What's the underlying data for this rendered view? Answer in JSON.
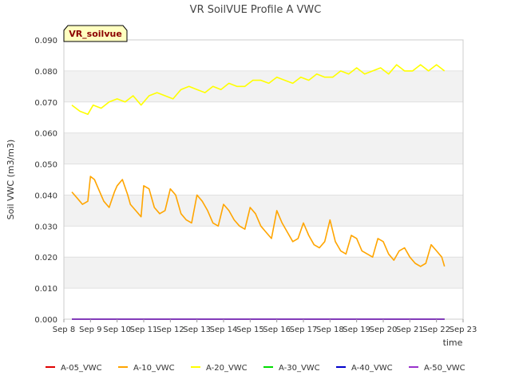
{
  "chart_data": {
    "type": "line",
    "title": "VR SoilVUE Profile A VWC",
    "badge": "VR_soilvue",
    "xlabel": "time",
    "ylabel": "Soil VWC (m3/m3)",
    "ylim": [
      0.0,
      0.09
    ],
    "xlim": [
      0,
      15
    ],
    "yticks": [
      "0.000",
      "0.010",
      "0.020",
      "0.030",
      "0.040",
      "0.050",
      "0.060",
      "0.070",
      "0.080",
      "0.090"
    ],
    "ytick_values": [
      0.0,
      0.01,
      0.02,
      0.03,
      0.04,
      0.05,
      0.06,
      0.07,
      0.08,
      0.09
    ],
    "xticks": [
      "Sep 8",
      "Sep 9",
      "Sep 10",
      "Sep 11",
      "Sep 12",
      "Sep 13",
      "Sep 14",
      "Sep 15",
      "Sep 16",
      "Sep 17",
      "Sep 18",
      "Sep 19",
      "Sep 20",
      "Sep 21",
      "Sep 22",
      "Sep 23"
    ],
    "xtick_values": [
      0,
      1,
      2,
      3,
      4,
      5,
      6,
      7,
      8,
      9,
      10,
      11,
      12,
      13,
      14,
      15
    ],
    "grid": true,
    "legend_position": "bottom",
    "series": [
      {
        "name": "A-05_VWC",
        "color": "#e00000",
        "x": [
          0.3,
          14.3
        ],
        "values": [
          0.0,
          0.0
        ]
      },
      {
        "name": "A-10_VWC",
        "color": "#ffa500",
        "x": [
          0.3,
          0.5,
          0.7,
          0.9,
          1.0,
          1.15,
          1.3,
          1.5,
          1.7,
          1.9,
          2.0,
          2.2,
          2.4,
          2.5,
          2.7,
          2.9,
          3.0,
          3.2,
          3.4,
          3.6,
          3.8,
          4.0,
          4.2,
          4.4,
          4.6,
          4.8,
          5.0,
          5.2,
          5.4,
          5.6,
          5.8,
          6.0,
          6.2,
          6.4,
          6.6,
          6.8,
          7.0,
          7.2,
          7.4,
          7.6,
          7.8,
          8.0,
          8.2,
          8.4,
          8.6,
          8.8,
          9.0,
          9.2,
          9.4,
          9.6,
          9.8,
          10.0,
          10.2,
          10.4,
          10.6,
          10.8,
          11.0,
          11.2,
          11.4,
          11.6,
          11.8,
          12.0,
          12.2,
          12.4,
          12.6,
          12.8,
          13.0,
          13.2,
          13.4,
          13.6,
          13.8,
          14.0,
          14.2,
          14.3
        ],
        "values": [
          0.041,
          0.039,
          0.037,
          0.038,
          0.046,
          0.045,
          0.042,
          0.038,
          0.036,
          0.041,
          0.043,
          0.045,
          0.04,
          0.037,
          0.035,
          0.033,
          0.043,
          0.042,
          0.036,
          0.034,
          0.035,
          0.042,
          0.04,
          0.034,
          0.032,
          0.031,
          0.04,
          0.038,
          0.035,
          0.031,
          0.03,
          0.037,
          0.035,
          0.032,
          0.03,
          0.029,
          0.036,
          0.034,
          0.03,
          0.028,
          0.026,
          0.035,
          0.031,
          0.028,
          0.025,
          0.026,
          0.031,
          0.027,
          0.024,
          0.023,
          0.025,
          0.032,
          0.025,
          0.022,
          0.021,
          0.027,
          0.026,
          0.022,
          0.021,
          0.02,
          0.026,
          0.025,
          0.021,
          0.019,
          0.022,
          0.023,
          0.02,
          0.018,
          0.017,
          0.018,
          0.024,
          0.022,
          0.02,
          0.017
        ]
      },
      {
        "name": "A-20_VWC",
        "color": "#ffff00",
        "x": [
          0.3,
          0.6,
          0.9,
          1.1,
          1.4,
          1.7,
          2.0,
          2.3,
          2.6,
          2.9,
          3.2,
          3.5,
          3.8,
          4.1,
          4.4,
          4.7,
          5.0,
          5.3,
          5.6,
          5.9,
          6.2,
          6.5,
          6.8,
          7.1,
          7.4,
          7.7,
          8.0,
          8.3,
          8.6,
          8.9,
          9.2,
          9.5,
          9.8,
          10.1,
          10.4,
          10.7,
          11.0,
          11.3,
          11.6,
          11.9,
          12.2,
          12.5,
          12.8,
          13.1,
          13.4,
          13.7,
          14.0,
          14.3
        ],
        "values": [
          0.069,
          0.067,
          0.066,
          0.069,
          0.068,
          0.07,
          0.071,
          0.07,
          0.072,
          0.069,
          0.072,
          0.073,
          0.072,
          0.071,
          0.074,
          0.075,
          0.074,
          0.073,
          0.075,
          0.074,
          0.076,
          0.075,
          0.075,
          0.077,
          0.077,
          0.076,
          0.078,
          0.077,
          0.076,
          0.078,
          0.077,
          0.079,
          0.078,
          0.078,
          0.08,
          0.079,
          0.081,
          0.079,
          0.08,
          0.081,
          0.079,
          0.082,
          0.08,
          0.08,
          0.082,
          0.08,
          0.082,
          0.08
        ]
      },
      {
        "name": "A-30_VWC",
        "color": "#00dd00",
        "x": [
          0.3,
          14.3
        ],
        "values": [
          0.0,
          0.0
        ]
      },
      {
        "name": "A-40_VWC",
        "color": "#0000cc",
        "x": [
          0.3,
          14.3
        ],
        "values": [
          0.0,
          0.0
        ]
      },
      {
        "name": "A-50_VWC",
        "color": "#9932cc",
        "x": [
          0.3,
          14.3
        ],
        "values": [
          0.0,
          0.0
        ]
      }
    ]
  }
}
